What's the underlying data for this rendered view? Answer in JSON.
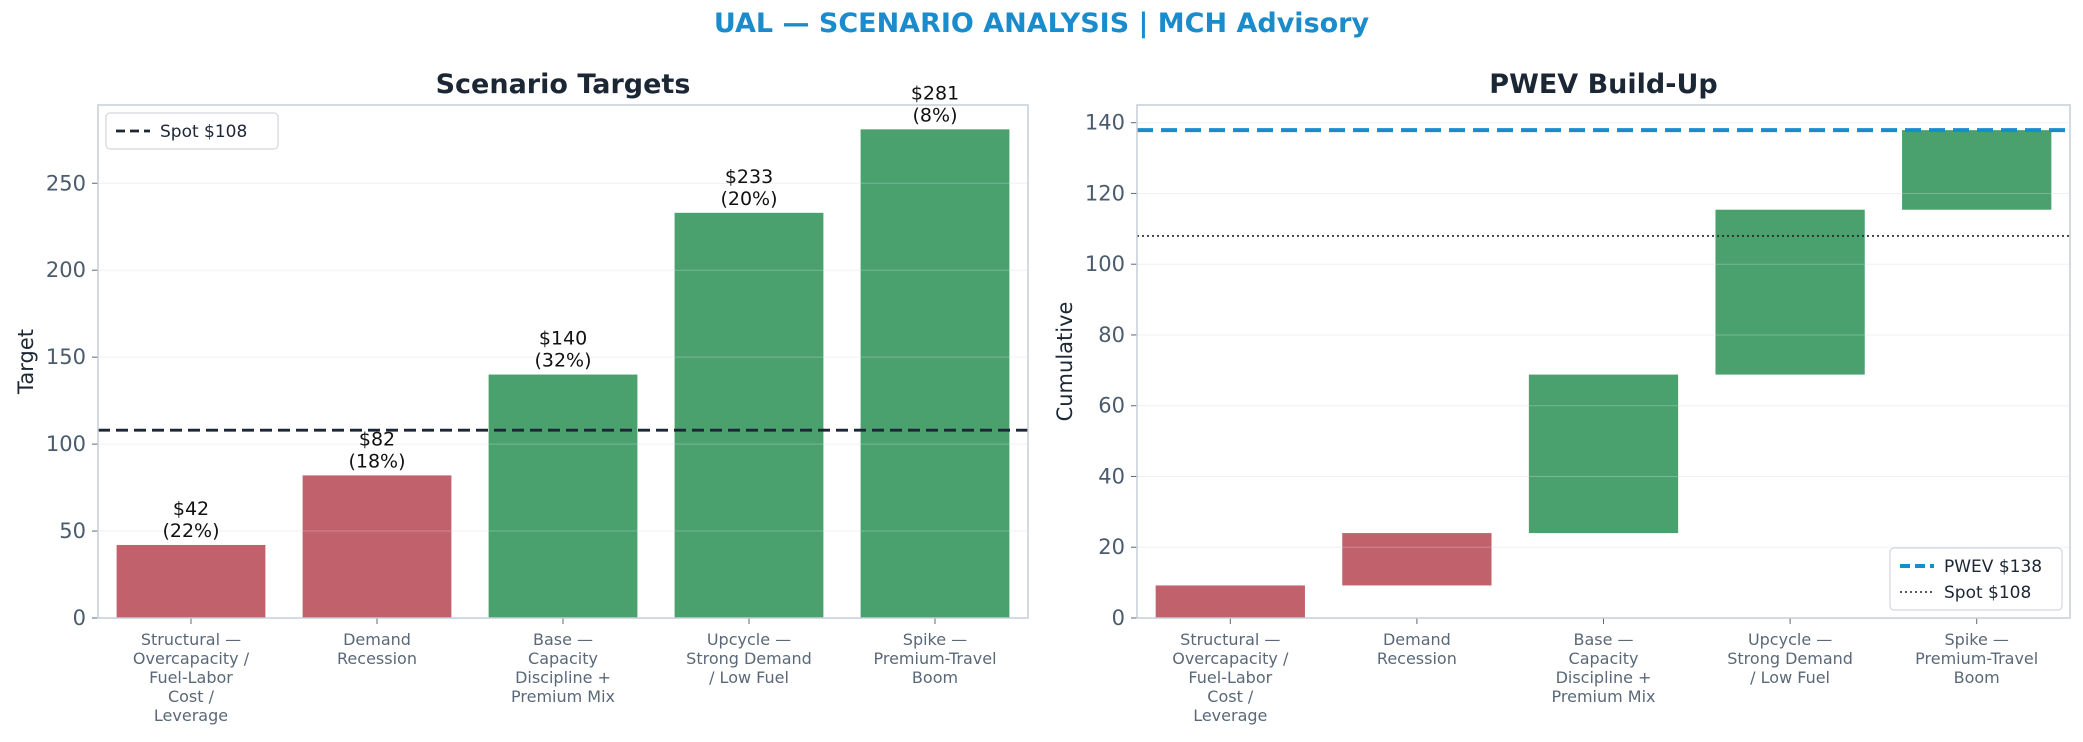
{
  "suptitle": "UAL — SCENARIO ANALYSIS | MCH Advisory",
  "colors": {
    "down": "#c0616b",
    "up": "#4aa16d",
    "pwev": "#1a8ccc",
    "spot": "#1c2735"
  },
  "chart_data": [
    {
      "type": "bar",
      "title": "Scenario Targets",
      "xlabel": "",
      "ylabel": "Target",
      "ylim": [
        0,
        295
      ],
      "yticks": [
        0,
        50,
        100,
        150,
        200,
        250
      ],
      "grid": true,
      "categories": [
        [
          "Structural —",
          "Overcapacity /",
          "Fuel-Labor",
          "Cost /",
          "Leverage"
        ],
        [
          "Demand",
          "Recession"
        ],
        [
          "Base —",
          "Capacity",
          "Discipline +",
          "Premium Mix"
        ],
        [
          "Upcycle —",
          "Strong Demand",
          "/ Low Fuel"
        ],
        [
          "Spike —",
          "Premium-Travel",
          "Boom"
        ]
      ],
      "values": [
        42,
        82,
        140,
        233,
        281
      ],
      "bar_labels": [
        [
          "$42",
          "(22%)"
        ],
        [
          "$82",
          "(18%)"
        ],
        [
          "$140",
          "(32%)"
        ],
        [
          "$233",
          "(20%)"
        ],
        [
          "$281",
          "(8%)"
        ]
      ],
      "bar_colors": [
        "down",
        "down",
        "up",
        "up",
        "up"
      ],
      "reference_lines": [
        {
          "name": "Spot $108",
          "value": 108,
          "style": "dashed"
        }
      ],
      "legend": "top-left"
    },
    {
      "type": "bar",
      "subtype": "waterfall",
      "title": "PWEV Build-Up",
      "xlabel": "",
      "ylabel": "Cumulative",
      "ylim": [
        0,
        145
      ],
      "yticks": [
        0,
        20,
        40,
        60,
        80,
        100,
        120,
        140
      ],
      "grid": true,
      "categories": [
        [
          "Structural —",
          "Overcapacity /",
          "Fuel-Labor",
          "Cost /",
          "Leverage"
        ],
        [
          "Demand",
          "Recession"
        ],
        [
          "Base —",
          "Capacity",
          "Discipline +",
          "Premium Mix"
        ],
        [
          "Upcycle —",
          "Strong Demand",
          "/ Low Fuel"
        ],
        [
          "Spike —",
          "Premium-Travel",
          "Boom"
        ]
      ],
      "bases": [
        0,
        9.2,
        24.0,
        68.8,
        115.4
      ],
      "tops": [
        9.2,
        24.0,
        68.8,
        115.4,
        137.9
      ],
      "bar_colors": [
        "down",
        "down",
        "up",
        "up",
        "up"
      ],
      "reference_lines": [
        {
          "name": "PWEV $138",
          "value": 137.9,
          "style": "dashed-thick"
        },
        {
          "name": "Spot $108",
          "value": 108,
          "style": "dotted"
        }
      ],
      "legend": "bottom-right"
    }
  ]
}
